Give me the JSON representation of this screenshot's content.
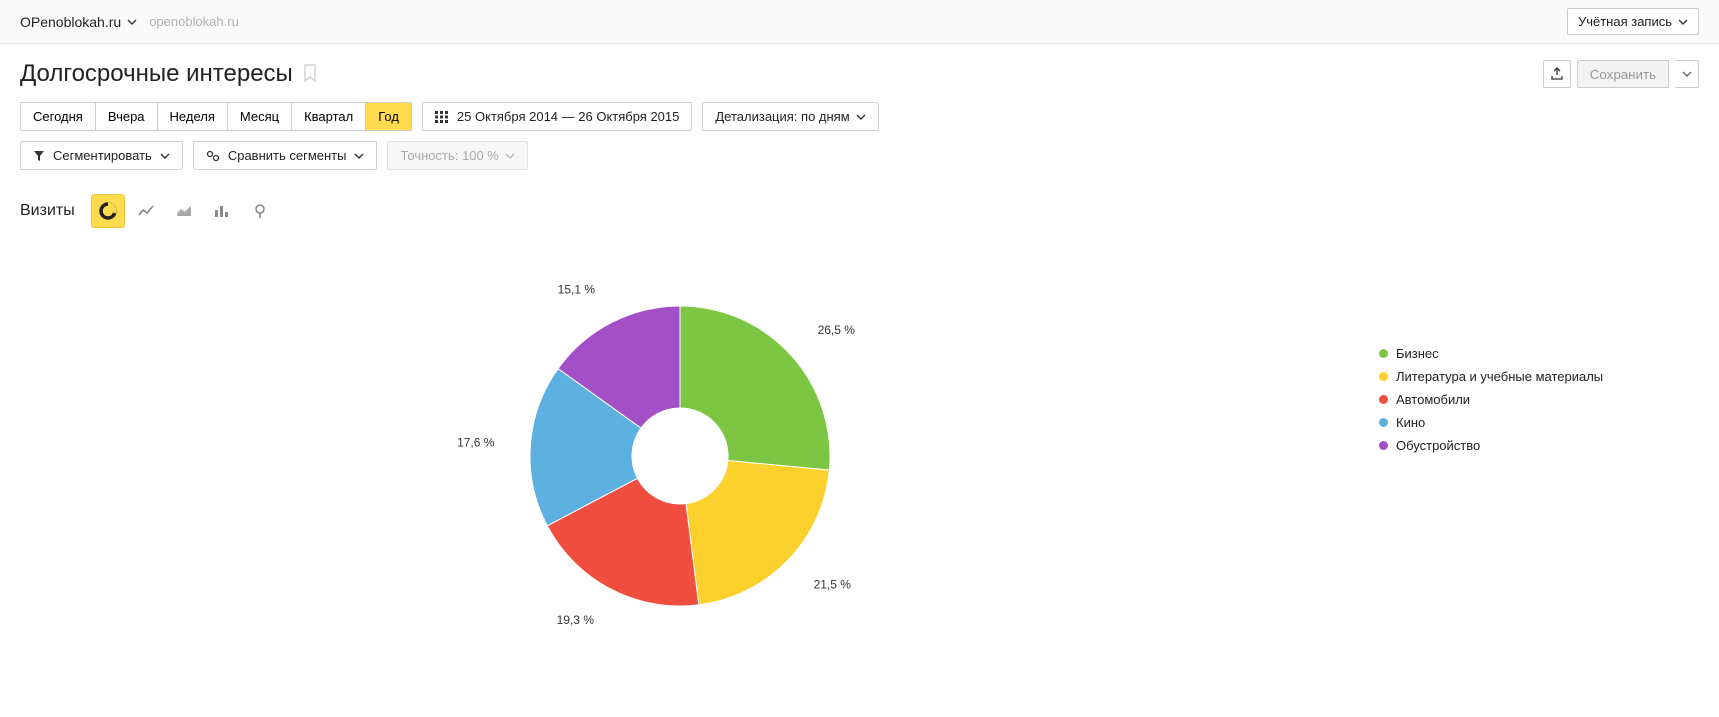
{
  "topbar": {
    "site_name": "OPenoblokah.ru",
    "site_domain": "openoblokah.ru",
    "account_label": "Учётная запись"
  },
  "page_title": "Долгосрочные интересы",
  "save_label": "Сохранить",
  "period_buttons": [
    {
      "label": "Сегодня",
      "active": false
    },
    {
      "label": "Вчера",
      "active": false
    },
    {
      "label": "Неделя",
      "active": false
    },
    {
      "label": "Месяц",
      "active": false
    },
    {
      "label": "Квартал",
      "active": false
    },
    {
      "label": "Год",
      "active": true
    }
  ],
  "date_range": "25 Октября 2014 — 26 Октября 2015",
  "detail_label": "Детализация: по дням",
  "segment_label": "Сегментировать",
  "compare_label": "Сравнить сегменты",
  "precision_label": "Точность: 100 %",
  "viz_label": "Визиты",
  "chart": {
    "type": "donut",
    "inner_radius_ratio": 0.32,
    "outer_radius": 150,
    "center_offset_x": 0,
    "background_color": "#ffffff",
    "label_fontsize": 12,
    "label_color": "#333333",
    "label_offset": 36,
    "slices": [
      {
        "label": "Бизнес",
        "value": 26.5,
        "color": "#7cc644",
        "display": "26,5 %"
      },
      {
        "label": "Литература и учебные материалы",
        "value": 21.5,
        "color": "#fcd12e",
        "display": "21,5 %"
      },
      {
        "label": "Автомобили",
        "value": 19.3,
        "color": "#f04e3e",
        "display": "19,3 %"
      },
      {
        "label": "Кино",
        "value": 17.6,
        "color": "#5db1e1",
        "display": "17,6 %"
      },
      {
        "label": "Обустройство",
        "value": 15.1,
        "color": "#a24fc8",
        "display": "15,1 %"
      }
    ]
  }
}
